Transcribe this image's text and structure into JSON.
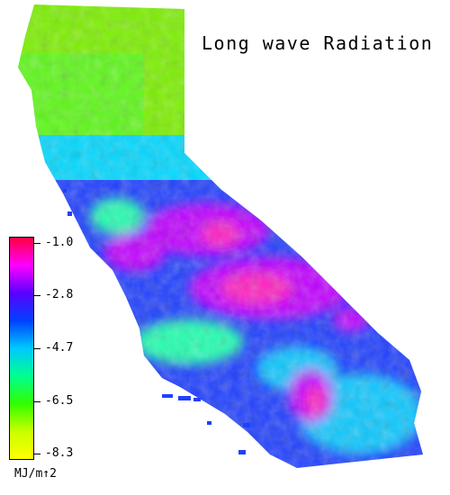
{
  "title": "Long wave Radiation",
  "legend": {
    "unit": "MJ/m↑2",
    "ticks": [
      "-1.0",
      "-2.8",
      "-4.7",
      "-6.5",
      "-8.3"
    ],
    "colors": [
      "#ff0040",
      "#ff00ff",
      "#5a00ff",
      "#0040ff",
      "#00c8ff",
      "#00ff90",
      "#30ff00",
      "#c8ff00",
      "#ffff00"
    ]
  },
  "map_colors": {
    "north": "#7cf000",
    "north_alt": "#40ff30",
    "transition": "#00d8ff",
    "central": "#2040ff",
    "high": "#c000ff",
    "peak": "#ff20c0",
    "coast": "#20ffb0",
    "south": "#10c8ff"
  }
}
